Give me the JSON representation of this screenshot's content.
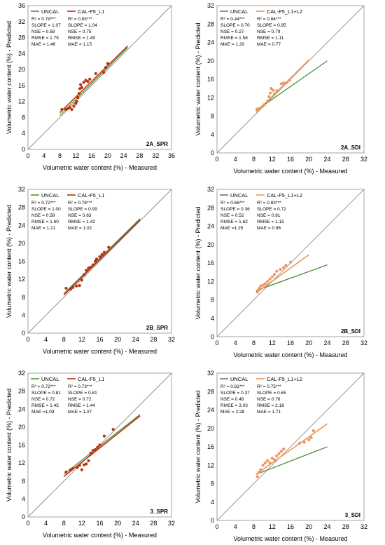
{
  "chart_data": [
    {
      "type": "scatter",
      "panel_id": "2A_SPR",
      "panel_label": "2A_SPR",
      "xlabel": "Volumetric water content (%) - Measured",
      "ylabel": "Volumetric water content (%) - Predicted",
      "xlim": [
        0,
        36
      ],
      "ylim": [
        0,
        36
      ],
      "xticks": [
        "0",
        "4",
        "8",
        "12",
        "16",
        "20",
        "24",
        "28",
        "32",
        "36"
      ],
      "yticks": [
        "0",
        "4",
        "8",
        "12",
        "16",
        "20",
        "24",
        "28",
        "32",
        "36"
      ],
      "one_to_one_line": true,
      "legend_position": "top-left",
      "series": [
        {
          "name": "UNCAL",
          "color": "#4e8f3a",
          "line": [
            [
              8,
              8.5
            ],
            [
              25,
              25.5
            ]
          ],
          "stats": [
            "R² = 0.79***",
            "SLOPE = 1.07",
            "NSE = 0.68",
            "RMSE = 1.75",
            "MAE = 1.46"
          ]
        },
        {
          "name": "CAL-F5_L1",
          "color": "#b8320e",
          "line": [
            [
              8,
              9.2
            ],
            [
              25,
              25.9
            ]
          ],
          "stats": [
            "R² = 0.83***",
            "SLOPE = 1.04",
            "NSE = 0.75",
            "RMSE = 1.49",
            "MAE = 1.15"
          ],
          "points": [
            [
              8.5,
              10
            ],
            [
              9.5,
              10
            ],
            [
              10,
              10.2
            ],
            [
              10.5,
              10.5
            ],
            [
              11,
              10
            ],
            [
              11.5,
              10.8
            ],
            [
              12,
              11.5
            ],
            [
              12.2,
              12
            ],
            [
              12.5,
              13
            ],
            [
              12.8,
              14
            ],
            [
              13,
              15.2
            ],
            [
              13.2,
              16.2
            ],
            [
              13.5,
              15.5
            ],
            [
              14,
              16.8
            ],
            [
              14.5,
              17.3
            ],
            [
              15,
              17
            ],
            [
              15.5,
              17.6
            ],
            [
              17,
              19
            ],
            [
              19,
              19.3
            ],
            [
              19.5,
              20.5
            ],
            [
              20,
              21.5
            ]
          ]
        }
      ]
    },
    {
      "type": "scatter",
      "panel_id": "2A_SDI",
      "panel_label": "2A_SDI",
      "xlabel": "Volumetric water content (%) - Measured",
      "ylabel": "Volumetric water content (%) - Predicted",
      "xlim": [
        0,
        32
      ],
      "ylim": [
        0,
        32
      ],
      "xticks": [
        "0",
        "4",
        "8",
        "12",
        "16",
        "20",
        "24",
        "28",
        "32"
      ],
      "yticks": [
        "0",
        "4",
        "8",
        "12",
        "16",
        "20",
        "24",
        "28",
        "32"
      ],
      "one_to_one_line": true,
      "legend_position": "top-left",
      "series": [
        {
          "name": "UNCAL",
          "color": "#4e8f3a",
          "line": [
            [
              8.5,
              9.2
            ],
            [
              24,
              20
            ]
          ],
          "stats": [
            "R² = 0.44***",
            "SLOPE = 0.70",
            "NSE = 0.27",
            "RMSE = 1.58",
            "MAE = 1.20"
          ]
        },
        {
          "name": "CAL-F5_L1+L2",
          "color": "#f0955a",
          "line": [
            [
              8.5,
              8.8
            ],
            [
              20,
              20.2
            ]
          ],
          "stats": [
            "R² = 0.84***",
            "SLOPE = 0.95",
            "NSE = 0.79",
            "RMSE = 1.11",
            "MAE = 0.77"
          ],
          "points": [
            [
              8.7,
              9.5
            ],
            [
              9.2,
              9.6
            ],
            [
              9.5,
              9.8
            ],
            [
              10,
              10.2
            ],
            [
              10.3,
              10.5
            ],
            [
              11,
              11.2
            ],
            [
              11.3,
              12.2
            ],
            [
              11.6,
              13
            ],
            [
              11.8,
              14
            ],
            [
              12.2,
              13.6
            ],
            [
              12.5,
              12.8
            ],
            [
              13,
              13.5
            ],
            [
              14,
              15
            ],
            [
              14.5,
              15.2
            ],
            [
              15.2,
              15.3
            ],
            [
              15.8,
              15.8
            ]
          ]
        }
      ]
    },
    {
      "type": "scatter",
      "panel_id": "2B_SPR",
      "panel_label": "2B_SPR",
      "xlabel": "Volumetric water content (%) - Measured",
      "ylabel": "Volumetric water content (%) - Predicted",
      "xlim": [
        0,
        32
      ],
      "ylim": [
        0,
        32
      ],
      "xticks": [
        "0",
        "4",
        "8",
        "12",
        "16",
        "20",
        "24",
        "28",
        "32"
      ],
      "yticks": [
        "0",
        "4",
        "8",
        "12",
        "16",
        "20",
        "24",
        "28",
        "32"
      ],
      "one_to_one_line": true,
      "legend_position": "top-left",
      "series": [
        {
          "name": "UNCAL",
          "color": "#4e8f3a",
          "line": [
            [
              8,
              8.8
            ],
            [
              25,
              25.5
            ]
          ],
          "stats": [
            "R² = 0.72***",
            "SLOPE = 1.00",
            "NSE = 0.58",
            "RMSE = 1.60",
            "MAE = 1.21"
          ]
        },
        {
          "name": "CAL-F5_L1",
          "color": "#b8320e",
          "line": [
            [
              8,
              8.5
            ],
            [
              25,
              25.2
            ]
          ],
          "stats": [
            "R² = 0.78***",
            "SLOPE = 0.99",
            "NSE = 0.63",
            "RMSE = 1.42",
            "MAE = 1.02"
          ],
          "points": [
            [
              8.5,
              10
            ],
            [
              9.5,
              9.8
            ],
            [
              10,
              10.2
            ],
            [
              10.8,
              10.5
            ],
            [
              11.5,
              10.6
            ],
            [
              12,
              11.8
            ],
            [
              12.5,
              13
            ],
            [
              13,
              14
            ],
            [
              13.5,
              14.5
            ],
            [
              14,
              14.7
            ],
            [
              14.5,
              15.2
            ],
            [
              15,
              16
            ],
            [
              15.3,
              16.5
            ],
            [
              16,
              17
            ],
            [
              16.5,
              17.5
            ],
            [
              17,
              18
            ],
            [
              18,
              19.1
            ]
          ]
        }
      ]
    },
    {
      "type": "scatter",
      "panel_id": "2B_SDI",
      "panel_label": "2B_SDI",
      "xlabel": "Volumetric water content (%) - Measured",
      "ylabel": "Volumetric water content (%) - Predicted",
      "xlim": [
        0,
        32
      ],
      "ylim": [
        0,
        32
      ],
      "xticks": [
        "0",
        "4",
        "8",
        "12",
        "16",
        "20",
        "24",
        "28",
        "32"
      ],
      "yticks": [
        "0",
        "4",
        "8",
        "12",
        "16",
        "20",
        "24",
        "28",
        "32"
      ],
      "one_to_one_line": true,
      "legend_position": "top-left",
      "series": [
        {
          "name": "UNCAL",
          "color": "#4e8f3a",
          "line": [
            [
              8.5,
              10
            ],
            [
              24,
              15.6
            ]
          ],
          "stats": [
            "R² = 0.66***",
            "SLOPE = 0.36",
            "NSE = 0.52",
            "RMSE = 1.62",
            "MAE =1.25"
          ]
        },
        {
          "name": "CAL-F5_L1+L2",
          "color": "#f0955a",
          "line": [
            [
              8.5,
              9.5
            ],
            [
              20,
              17.8
            ]
          ],
          "stats": [
            "R² = 0.83***",
            "SLOPE = 0.72",
            "NSE = 0.81",
            "RMSE = 1.15",
            "MAE = 0.96"
          ],
          "points": [
            [
              8.8,
              9.7
            ],
            [
              9.2,
              10.5
            ],
            [
              9.5,
              11
            ],
            [
              10,
              11.2
            ],
            [
              10.5,
              11.5
            ],
            [
              11,
              12
            ],
            [
              11.5,
              12.5
            ],
            [
              12,
              13
            ],
            [
              12.5,
              13.5
            ],
            [
              13,
              14.2
            ],
            [
              13.8,
              14.6
            ],
            [
              14.5,
              15
            ],
            [
              15,
              15.5
            ],
            [
              16,
              16.2
            ]
          ]
        }
      ]
    },
    {
      "type": "scatter",
      "panel_id": "3_SPR",
      "panel_label": "3_SPR",
      "xlabel": "Volumetric water content (%) - Measured",
      "ylabel": "Volumetric water content (%) - Predicted",
      "xlim": [
        0,
        32
      ],
      "ylim": [
        0,
        32
      ],
      "xticks": [
        "0",
        "4",
        "8",
        "12",
        "16",
        "20",
        "24",
        "28",
        "32"
      ],
      "yticks": [
        "0",
        "4",
        "8",
        "12",
        "16",
        "20",
        "24",
        "28",
        "32"
      ],
      "one_to_one_line": true,
      "legend_position": "top-left",
      "series": [
        {
          "name": "UNCAL",
          "color": "#4e8f3a",
          "line": [
            [
              8,
              9.5
            ],
            [
              25,
              22.8
            ]
          ],
          "stats": [
            "R² = 0.72***",
            "SLOPE = 0.81",
            "NSE = 0.72",
            "RMSE = 1.45",
            "MAE =1.09"
          ]
        },
        {
          "name": "CAL-F5_L1",
          "color": "#b8320e",
          "line": [
            [
              8,
              9
            ],
            [
              25,
              22.5
            ]
          ],
          "stats": [
            "R² = 0.73***",
            "SLOPE = 0.81",
            "NSE = 0.72",
            "RMSE = 1.44",
            "MAE = 1.07"
          ],
          "points": [
            [
              8.5,
              10
            ],
            [
              9.5,
              10.5
            ],
            [
              10,
              10.8
            ],
            [
              11,
              11
            ],
            [
              11.5,
              11.5
            ],
            [
              12,
              10.5
            ],
            [
              12.5,
              11.6
            ],
            [
              13,
              11.8
            ],
            [
              13.5,
              12.5
            ],
            [
              14,
              14.2
            ],
            [
              14.5,
              14.8
            ],
            [
              15,
              15
            ],
            [
              15.5,
              15.5
            ],
            [
              16,
              16
            ],
            [
              17,
              18
            ],
            [
              19,
              19.5
            ]
          ]
        }
      ]
    },
    {
      "type": "scatter",
      "panel_id": "3_SDI",
      "panel_label": "3_SDI",
      "xlabel": "Volumetric water content (%) - Measured",
      "ylabel": "Volumetric water content (%) - Predicted",
      "xlim": [
        0,
        32
      ],
      "ylim": [
        0,
        32
      ],
      "xticks": [
        "0",
        "4",
        "8",
        "12",
        "16",
        "20",
        "24",
        "28",
        "32"
      ],
      "yticks": [
        "0",
        "4",
        "8",
        "12",
        "16",
        "20",
        "24",
        "28",
        "32"
      ],
      "one_to_one_line": true,
      "legend_position": "top-left",
      "series": [
        {
          "name": "UNCAL",
          "color": "#4e8f3a",
          "line": [
            [
              8.5,
              10
            ],
            [
              24,
              16
            ]
          ],
          "stats": [
            "R² = 0.81***",
            "SLOPE = 0.37",
            "NSE = 0.48",
            "RMSE = 3.03",
            "MAE = 2.28"
          ]
        },
        {
          "name": "CAL-F5_L1+L2",
          "color": "#f0955a",
          "line": [
            [
              8.5,
              10
            ],
            [
              24,
              21
            ]
          ],
          "stats": [
            "R² = 0.75***",
            "SLOPE = 0.65",
            "NSE = 0.76",
            "RMSE = 2.18",
            "MAE = 1.71"
          ],
          "points": [
            [
              8.8,
              9.5
            ],
            [
              9.2,
              10.5
            ],
            [
              9.5,
              11
            ],
            [
              10,
              12
            ],
            [
              10.5,
              12.5
            ],
            [
              11,
              13
            ],
            [
              11.5,
              12.5
            ],
            [
              12,
              13.5
            ],
            [
              12.5,
              13.2
            ],
            [
              13,
              14
            ],
            [
              13.5,
              14.5
            ],
            [
              14,
              15
            ],
            [
              14.5,
              15.5
            ],
            [
              18,
              16.8
            ],
            [
              19,
              17
            ],
            [
              20,
              17.5
            ],
            [
              20.5,
              18
            ],
            [
              21,
              19.5
            ]
          ]
        }
      ]
    }
  ]
}
